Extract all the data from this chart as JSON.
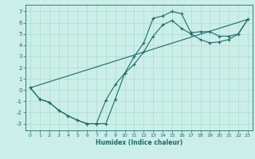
{
  "xlabel": "Humidex (Indice chaleur)",
  "bg_color": "#cceee8",
  "line_color": "#1a6b6b",
  "grid_color": "#aaddcc",
  "xlim": [
    -0.5,
    23.5
  ],
  "ylim": [
    -3.6,
    7.6
  ],
  "xticks": [
    0,
    1,
    2,
    3,
    4,
    5,
    6,
    7,
    8,
    9,
    10,
    11,
    12,
    13,
    14,
    15,
    16,
    17,
    18,
    19,
    20,
    21,
    22,
    23
  ],
  "yticks": [
    -3,
    -2,
    -1,
    0,
    1,
    2,
    3,
    4,
    5,
    6,
    7
  ],
  "line1_x": [
    0,
    1,
    2,
    3,
    4,
    5,
    6,
    7,
    8,
    9,
    10,
    11,
    12,
    13,
    14,
    15,
    16,
    17,
    18,
    19,
    20,
    21,
    22,
    23
  ],
  "line1_y": [
    0.2,
    -0.8,
    -1.1,
    -1.8,
    -2.3,
    -2.7,
    -3.0,
    -3.0,
    -3.0,
    -0.8,
    1.5,
    3.0,
    4.2,
    6.4,
    6.6,
    7.0,
    6.8,
    5.1,
    5.2,
    5.2,
    4.8,
    4.8,
    5.0,
    6.3
  ],
  "line2_x": [
    0,
    1,
    2,
    3,
    4,
    5,
    6,
    7,
    8,
    9,
    10,
    11,
    12,
    13,
    14,
    15,
    16,
    17,
    18,
    19,
    20,
    21,
    22,
    23
  ],
  "line2_y": [
    0.2,
    -0.8,
    -1.1,
    -1.8,
    -2.3,
    -2.7,
    -3.0,
    -3.0,
    -0.9,
    0.5,
    1.5,
    2.3,
    3.4,
    4.8,
    5.8,
    6.2,
    5.5,
    5.0,
    4.5,
    4.2,
    4.3,
    4.5,
    5.0,
    6.3
  ],
  "line3_x": [
    0,
    23
  ],
  "line3_y": [
    0.2,
    6.3
  ]
}
